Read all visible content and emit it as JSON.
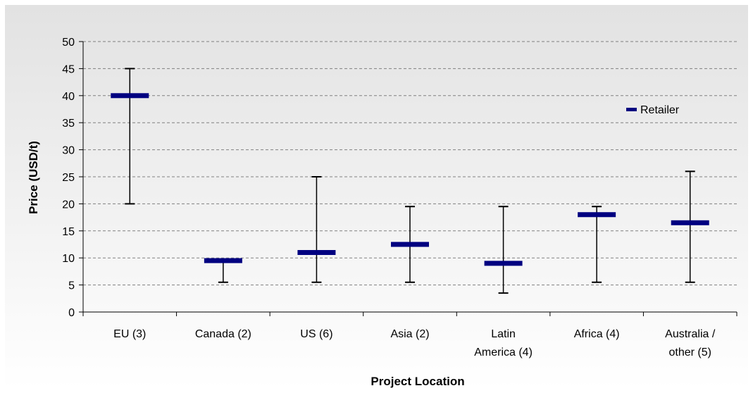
{
  "chart_data": {
    "type": "high-low-marker",
    "categories": [
      "EU (3)",
      "Canada (2)",
      "US (6)",
      "Asia (2)",
      "Latin America (4)",
      "Africa (4)",
      "Australia / other (5)"
    ],
    "category_lines": [
      [
        "EU (3)"
      ],
      [
        "Canada (2)"
      ],
      [
        "US (6)"
      ],
      [
        "Asia (2)"
      ],
      [
        "Latin",
        "America (4)"
      ],
      [
        "Africa (4)"
      ],
      [
        "Australia /",
        "other (5)"
      ]
    ],
    "series": [
      {
        "name": "Retailer",
        "values": [
          40,
          9.5,
          11,
          12.5,
          9,
          18,
          16.5
        ]
      }
    ],
    "high": [
      45,
      9.5,
      25,
      19.5,
      19.5,
      19.5,
      26
    ],
    "low": [
      20,
      5.5,
      5.5,
      5.5,
      3.5,
      5.5,
      5.5
    ],
    "xlabel": "Project Location",
    "ylabel": "Price (USD/t)",
    "ylim": [
      0,
      50
    ],
    "yticks": [
      0,
      5,
      10,
      15,
      20,
      25,
      30,
      35,
      40,
      45,
      50
    ],
    "grid": true,
    "legend_position": "right",
    "colors": {
      "marker": "#000080",
      "whisker": "#000000",
      "plot_top": "#e2e2e2",
      "plot_bottom": "#ffffff",
      "grid": "#808080"
    }
  }
}
